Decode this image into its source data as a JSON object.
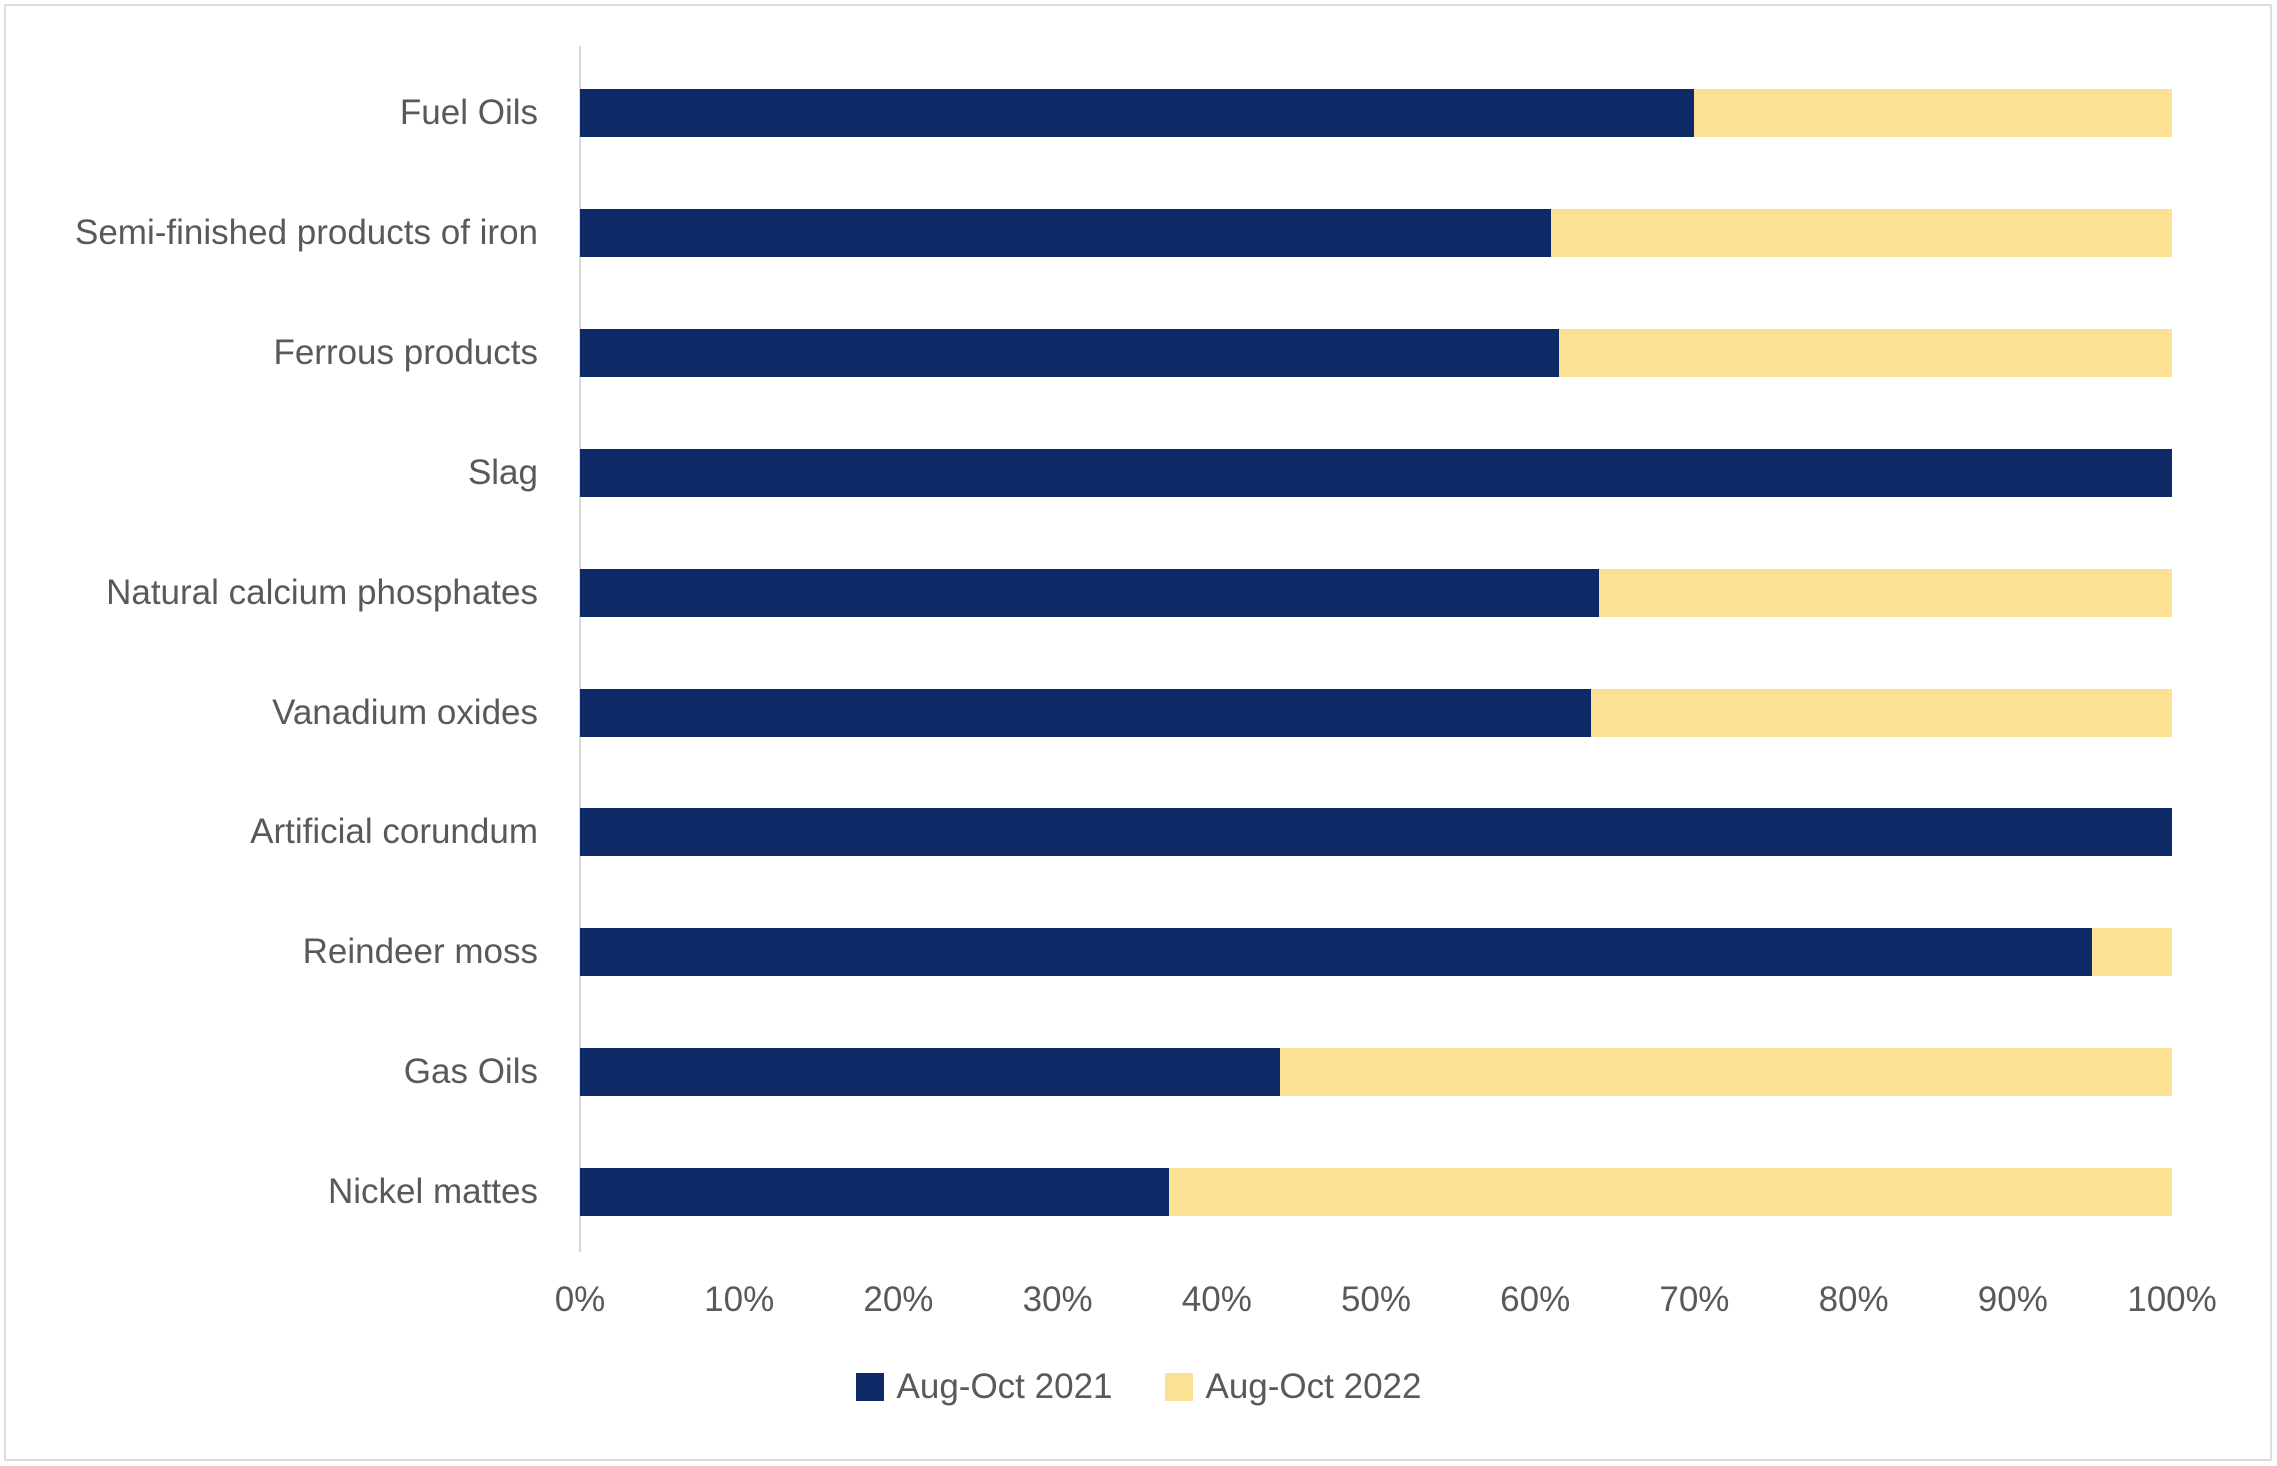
{
  "chart_data": {
    "type": "bar",
    "orientation": "horizontal",
    "stacked": true,
    "stack_total": 100,
    "grid": false,
    "legend_position": "bottom",
    "xlim": [
      0,
      100
    ],
    "categories": [
      "Fuel Oils",
      "Semi-finished products of iron",
      "Ferrous products",
      "Slag",
      "Natural calcium phosphates",
      "Vanadium oxides",
      "Artificial corundum",
      "Reindeer moss",
      "Gas Oils",
      "Nickel mattes"
    ],
    "series": [
      {
        "name": "Aug-Oct 2021",
        "color": "#0E2A66",
        "values": [
          70,
          61,
          61.5,
          100,
          64,
          63.5,
          100,
          95,
          44,
          37
        ]
      },
      {
        "name": "Aug-Oct 2022",
        "color": "#FCE195",
        "values": [
          30,
          39,
          38.5,
          0,
          36,
          36.5,
          0,
          5,
          56,
          63
        ]
      }
    ],
    "x_ticks": [
      "0%",
      "10%",
      "20%",
      "30%",
      "40%",
      "50%",
      "60%",
      "70%",
      "80%",
      "90%",
      "100%"
    ]
  },
  "legend": {
    "items": [
      {
        "label": "Aug-Oct 2021",
        "color": "#0E2A66"
      },
      {
        "label": "Aug-Oct 2022",
        "color": "#FCE195"
      }
    ]
  },
  "colors": {
    "series_2021": "#0E2A66",
    "series_2022": "#FCE195",
    "text": "#595959",
    "axis_line": "#d9d9d9",
    "frame_border": "#dcdcdc",
    "background": "#ffffff"
  }
}
